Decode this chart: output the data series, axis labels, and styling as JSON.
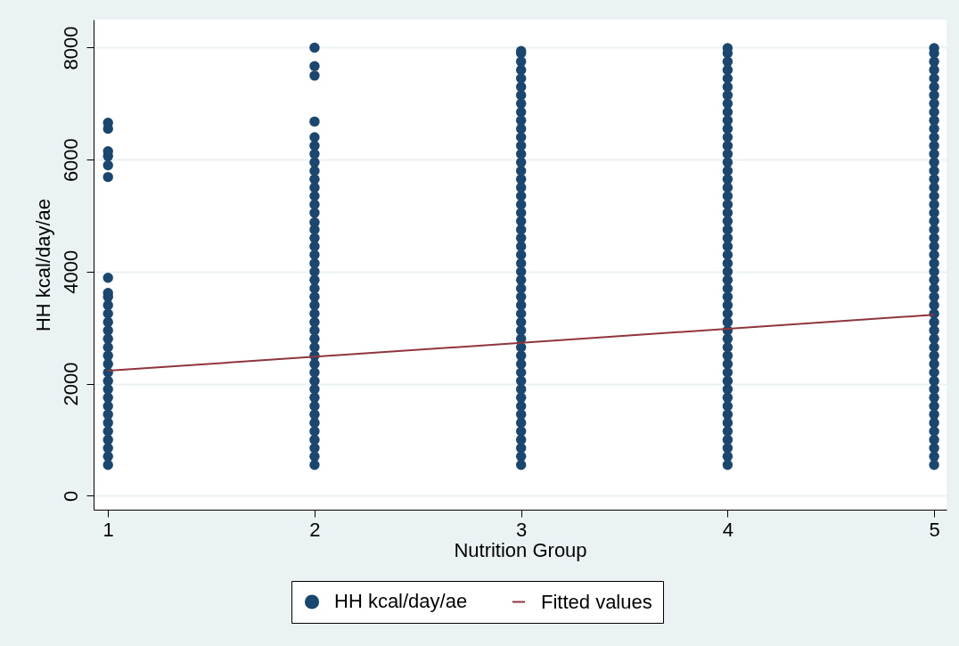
{
  "chart_data": {
    "type": "scatter",
    "xlabel": "Nutrition Group",
    "ylabel": "HH kcal/day/ae",
    "xlim": [
      0.93,
      5.06
    ],
    "xticks": [
      1,
      2,
      3,
      4,
      5
    ],
    "ylim": [
      -250,
      8500
    ],
    "yticks": [
      0,
      2000,
      4000,
      6000,
      8000
    ],
    "grid": "y",
    "legend": "bottom",
    "series": [
      {
        "name": "HH kcal/day/ae",
        "type": "scatter",
        "marker": "circle",
        "color": "#1a476f",
        "x": [
          1,
          1,
          1,
          1,
          1,
          1,
          1,
          1,
          1,
          1,
          1,
          1,
          1,
          1,
          1,
          1,
          1,
          1,
          1,
          1,
          1,
          1,
          1,
          1,
          1,
          1,
          1,
          1,
          1,
          2,
          2,
          2,
          2,
          2,
          2,
          2,
          2,
          2,
          2,
          2,
          2,
          2,
          2,
          2,
          2,
          2,
          2,
          2,
          2,
          2,
          2,
          2,
          2,
          2,
          2,
          2,
          2,
          2,
          2,
          2,
          2,
          2,
          2,
          2,
          2,
          2,
          2,
          2,
          2,
          2,
          2,
          2,
          2,
          3,
          3,
          3,
          3,
          3,
          3,
          3,
          3,
          3,
          3,
          3,
          3,
          3,
          3,
          3,
          3,
          3,
          3,
          3,
          3,
          3,
          3,
          3,
          3,
          3,
          3,
          3,
          3,
          3,
          3,
          3,
          3,
          3,
          3,
          3,
          3,
          3,
          3,
          3,
          3,
          3,
          3,
          3,
          3,
          3,
          3,
          3,
          3,
          3,
          3,
          3,
          4,
          4,
          4,
          4,
          4,
          4,
          4,
          4,
          4,
          4,
          4,
          4,
          4,
          4,
          4,
          4,
          4,
          4,
          4,
          4,
          4,
          4,
          4,
          4,
          4,
          4,
          4,
          4,
          4,
          4,
          4,
          4,
          4,
          4,
          4,
          4,
          4,
          4,
          4,
          4,
          4,
          4,
          4,
          4,
          4,
          4,
          4,
          4,
          4,
          4,
          4,
          5,
          5,
          5,
          5,
          5,
          5,
          5,
          5,
          5,
          5,
          5,
          5,
          5,
          5,
          5,
          5,
          5,
          5,
          5,
          5,
          5,
          5,
          5,
          5,
          5,
          5,
          5,
          5,
          5,
          5,
          5,
          5,
          5,
          5,
          5,
          5,
          5,
          5,
          5,
          5,
          5,
          5,
          5,
          5,
          5,
          5,
          5,
          5,
          5,
          5,
          5
        ],
        "values": [
          550,
          700,
          850,
          1000,
          1150,
          1300,
          1450,
          1600,
          1750,
          1900,
          2050,
          2200,
          2350,
          2500,
          2650,
          2800,
          2950,
          3100,
          3250,
          3400,
          3550,
          3620,
          3890,
          5690,
          5900,
          6060,
          6150,
          6550,
          6660,
          550,
          700,
          850,
          1000,
          1150,
          1300,
          1450,
          1600,
          1750,
          1900,
          2050,
          2200,
          2350,
          2500,
          2650,
          2800,
          2950,
          3100,
          3250,
          3400,
          3550,
          3700,
          3850,
          4000,
          4150,
          4300,
          4450,
          4600,
          4750,
          4880,
          5050,
          5200,
          5350,
          5500,
          5650,
          5800,
          5950,
          6100,
          6250,
          6400,
          6680,
          7500,
          7670,
          8000,
          550,
          700,
          850,
          1000,
          1150,
          1300,
          1450,
          1600,
          1750,
          1900,
          2050,
          2200,
          2350,
          2500,
          2650,
          2800,
          2950,
          3100,
          3250,
          3400,
          3550,
          3700,
          3850,
          4000,
          4150,
          4300,
          4450,
          4600,
          4750,
          4900,
          5050,
          5200,
          5350,
          5500,
          5650,
          5800,
          5950,
          6100,
          6250,
          6400,
          6550,
          6700,
          6850,
          7000,
          7150,
          7300,
          7450,
          7600,
          7750,
          7900,
          7940,
          550,
          700,
          850,
          1000,
          1150,
          1300,
          1450,
          1600,
          1750,
          1900,
          2050,
          2200,
          2350,
          2500,
          2650,
          2800,
          2950,
          3100,
          3250,
          3400,
          3550,
          3700,
          3850,
          4000,
          4150,
          4300,
          4450,
          4600,
          4750,
          4900,
          5050,
          5200,
          5350,
          5500,
          5650,
          5800,
          5950,
          6100,
          6250,
          6400,
          6550,
          6700,
          6850,
          7000,
          7150,
          7300,
          7450,
          7600,
          7750,
          7900,
          7990,
          550,
          700,
          850,
          1000,
          1150,
          1300,
          1450,
          1600,
          1750,
          1900,
          2050,
          2200,
          2350,
          2500,
          2650,
          2800,
          2950,
          3100,
          3250,
          3400,
          3550,
          3700,
          3850,
          4000,
          4150,
          4300,
          4450,
          4600,
          4750,
          4900,
          5050,
          5200,
          5350,
          5500,
          5650,
          5800,
          5950,
          6100,
          6250,
          6400,
          6550,
          6700,
          6850,
          7000,
          7150,
          7300,
          7450,
          7600,
          7750,
          7900,
          7990
        ]
      },
      {
        "name": "Fitted values",
        "type": "line",
        "marker": "none",
        "color": "#90353b",
        "x": [
          1,
          5
        ],
        "values": [
          2230,
          3230
        ]
      }
    ]
  }
}
